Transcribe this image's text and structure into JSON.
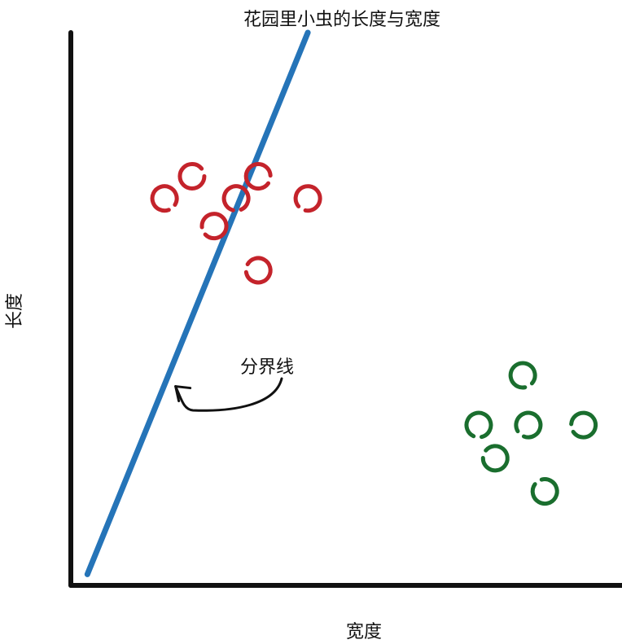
{
  "chart_data": {
    "type": "scatter",
    "title": "花园里小虫的长度与宽度",
    "xlabel": "宽度",
    "ylabel": "长度",
    "xlim": [
      0,
      100
    ],
    "ylim": [
      0,
      100
    ],
    "grid": false,
    "series": [
      {
        "color": "#c4232b",
        "points": [
          {
            "x": 22,
            "y": 74
          },
          {
            "x": 34,
            "y": 74
          },
          {
            "x": 17,
            "y": 70
          },
          {
            "x": 30,
            "y": 70
          },
          {
            "x": 43,
            "y": 70
          },
          {
            "x": 26,
            "y": 65
          },
          {
            "x": 34,
            "y": 57
          }
        ]
      },
      {
        "color": "#1a6e2e",
        "points": [
          {
            "x": 82,
            "y": 38
          },
          {
            "x": 74,
            "y": 29
          },
          {
            "x": 83,
            "y": 29
          },
          {
            "x": 93,
            "y": 29
          },
          {
            "x": 77,
            "y": 23
          },
          {
            "x": 86,
            "y": 17
          }
        ]
      }
    ],
    "boundary_line": {
      "label": "分界线",
      "color": "#2574b8",
      "points": [
        {
          "x": 3,
          "y": 2
        },
        {
          "x": 43,
          "y": 100
        }
      ]
    },
    "annotation": {
      "text": "分界线",
      "target": {
        "x": 19,
        "y": 36
      }
    }
  }
}
